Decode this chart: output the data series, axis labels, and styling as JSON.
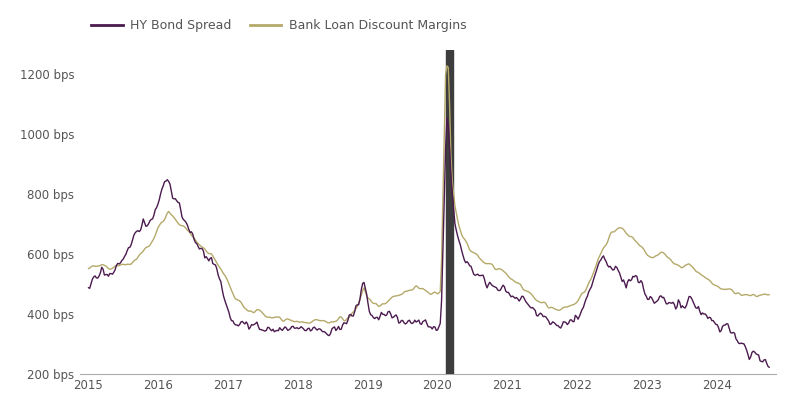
{
  "hy_color": "#4B1A4E",
  "loan_color": "#B5A96A",
  "bar_color": "#3D3D3D",
  "background": "#FFFFFF",
  "text_color": "#555555",
  "ylim": [
    200,
    1280
  ],
  "yticks": [
    200,
    400,
    600,
    800,
    1000,
    1200
  ],
  "ytick_labels": [
    "200 bps",
    "400 bps",
    "600 bps",
    "800 bps",
    "1000 bps",
    "1200 bps"
  ],
  "xtick_labels": [
    "2015",
    "2016",
    "2017",
    "2018",
    "2019",
    "2020",
    "2021",
    "2022",
    "2023",
    "2024"
  ],
  "legend_labels": [
    "HY Bond Spread",
    "Bank Loan Discount Margins"
  ],
  "linewidth": 1.0,
  "figsize": [
    8.0,
    4.15
  ],
  "dpi": 100,
  "xlim": [
    2014.88,
    2024.85
  ],
  "covid_bar_start": 2020.12,
  "covid_bar_end": 2020.22
}
